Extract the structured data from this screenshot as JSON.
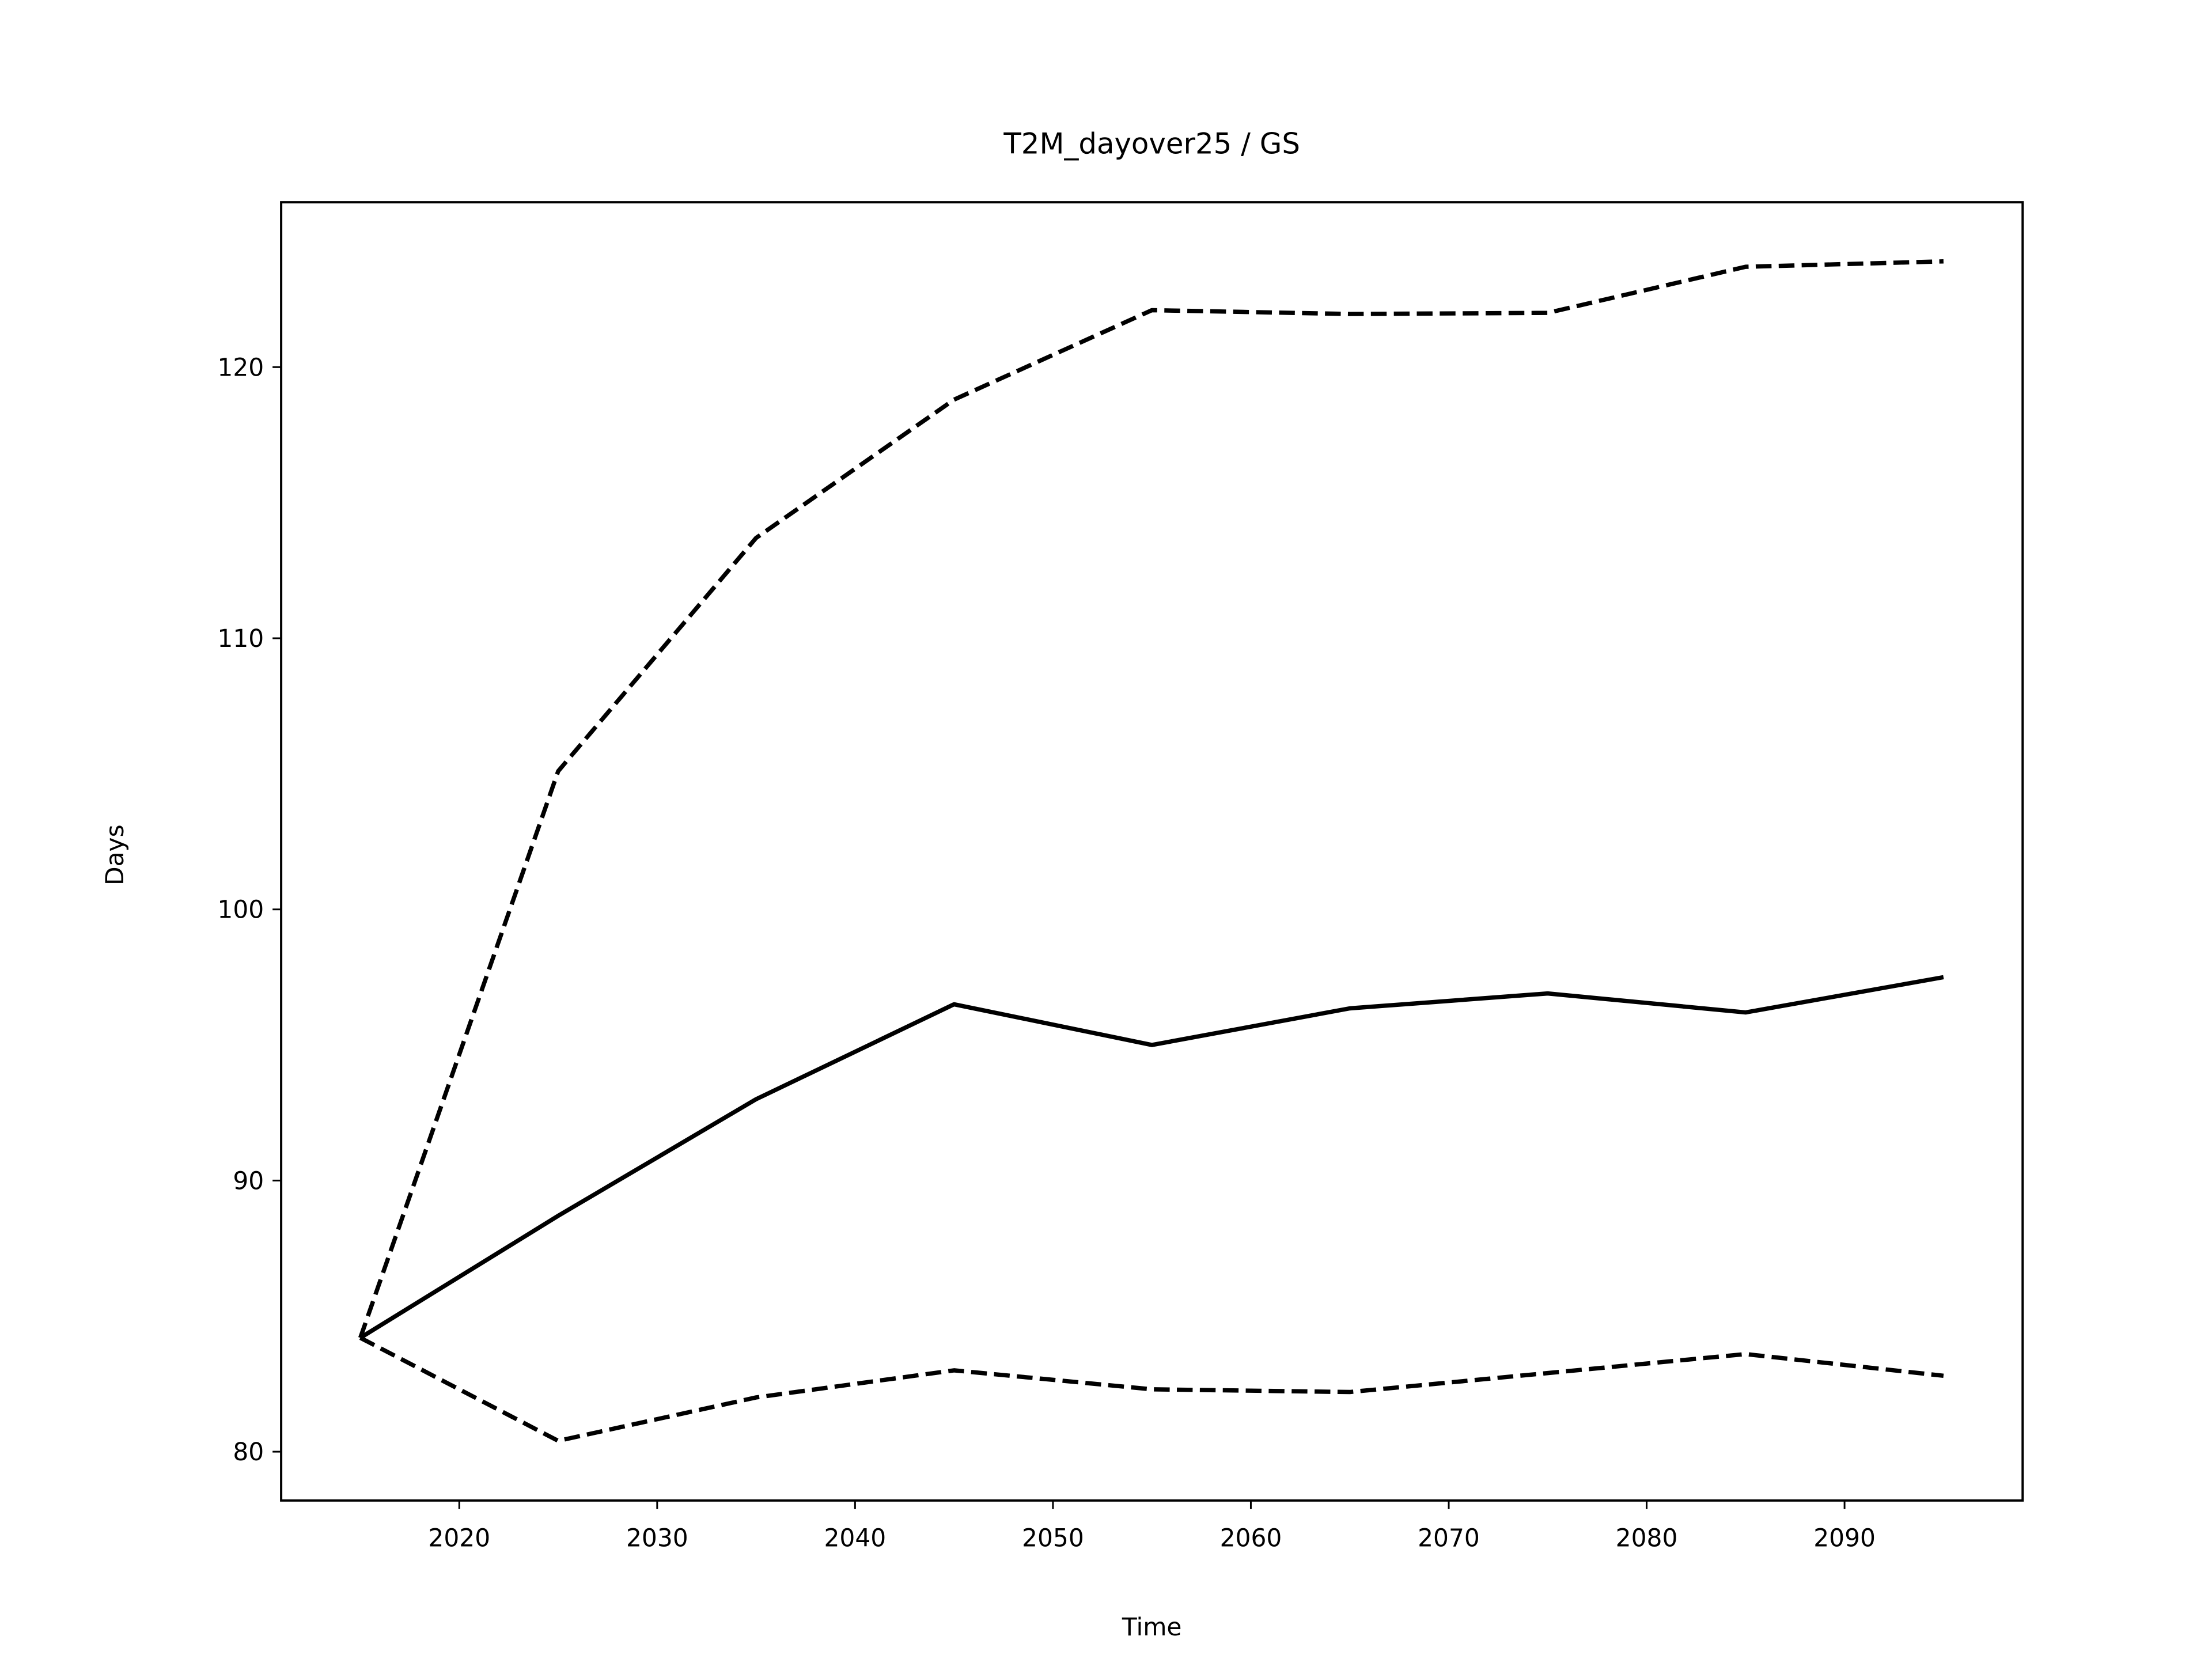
{
  "chart_data": {
    "type": "line",
    "title": "T2M_dayover25 / GS",
    "xlabel": "Time",
    "ylabel": "Days",
    "x": [
      2015,
      2025,
      2035,
      2045,
      2055,
      2065,
      2075,
      2085,
      2095
    ],
    "series": [
      {
        "color": "#000000",
        "linestyle": "solid",
        "values": [
          84.2,
          88.7,
          93.0,
          96.5,
          95.0,
          96.35,
          96.9,
          96.2,
          97.5
        ]
      },
      {
        "color": "#000000",
        "linestyle": "dashed",
        "values": [
          84.2,
          105.1,
          113.7,
          118.8,
          122.1,
          121.96,
          122.0,
          123.7,
          123.9
        ]
      },
      {
        "color": "#000000",
        "linestyle": "dashed",
        "values": [
          84.2,
          80.4,
          82.0,
          83.0,
          82.3,
          82.2,
          82.9,
          83.6,
          82.8
        ]
      }
    ],
    "xlim": [
      2011.0,
      2099.0
    ],
    "xticks": [
      2020,
      2030,
      2040,
      2050,
      2060,
      2070,
      2080,
      2090
    ],
    "ylim": [
      78.2,
      126.08
    ],
    "yticks": [
      80,
      90,
      100,
      110,
      120
    ],
    "grid": false
  }
}
